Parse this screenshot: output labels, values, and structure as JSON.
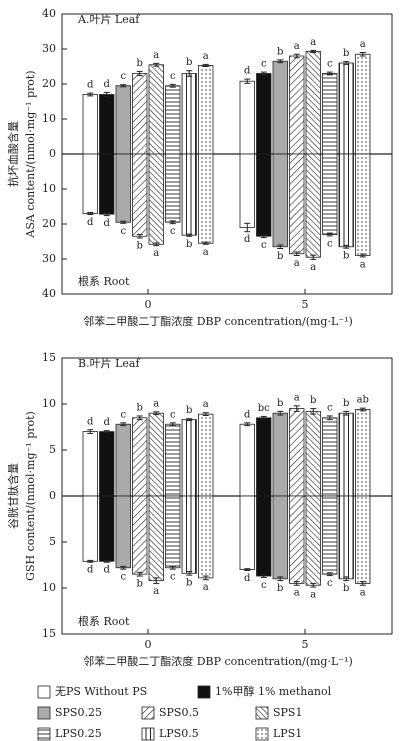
{
  "legend": [
    {
      "name": "无PS Without PS",
      "pattern": "white"
    },
    {
      "name": "1%甲醇 1% methanol",
      "pattern": "black"
    },
    {
      "name": "SPS0.25",
      "pattern": "gray"
    },
    {
      "name": "SPS0.5",
      "pattern": "slash"
    },
    {
      "name": "SPS1",
      "pattern": "backslash"
    },
    {
      "name": "LPS0.25",
      "pattern": "horizontal"
    },
    {
      "name": "LPS0.5",
      "pattern": "vertical"
    },
    {
      "name": "LPS1",
      "pattern": "dots"
    }
  ],
  "chart_data": [
    {
      "type": "bar",
      "title": "A.叶片 Leaf",
      "lower_label": "根系 Root",
      "y_label": [
        "抗坏血酸含量",
        "ASA content/(nmol·mg⁻¹ prot)"
      ],
      "x_label": "邻苯二甲酸二丁酯浓度 DBP concentration/(mg·L⁻¹)",
      "categories": [
        "0",
        "5"
      ],
      "ylim": [
        -40,
        40
      ],
      "yticks": [
        {
          "value": -40,
          "label": "40"
        },
        {
          "value": -30,
          "label": "30"
        },
        {
          "value": -20,
          "label": "20"
        },
        {
          "value": -10,
          "label": "10"
        },
        0,
        10,
        20,
        30,
        40
      ],
      "series": [
        {
          "values": [
            17,
            20.8
          ],
          "errors": [
            0.4,
            0.6
          ],
          "letters": [
            "d",
            "d"
          ],
          "root_values": [
            -17,
            -21
          ],
          "root_errors": [
            0.3,
            1.2
          ],
          "root_letters": [
            "d",
            "d"
          ]
        },
        {
          "values": [
            17,
            23
          ],
          "errors": [
            0.6,
            0.4
          ],
          "letters": [
            "d",
            "c"
          ],
          "root_values": [
            -17.2,
            -23.5
          ],
          "root_errors": [
            0.4,
            0.4
          ],
          "root_letters": [
            "d",
            "c"
          ]
        },
        {
          "values": [
            19.5,
            26.5
          ],
          "errors": [
            0.3,
            0.4
          ],
          "letters": [
            "c",
            "b"
          ],
          "root_values": [
            -19.5,
            -26.5
          ],
          "root_errors": [
            0.3,
            0.5
          ],
          "root_letters": [
            "c",
            "b"
          ]
        },
        {
          "values": [
            23,
            28
          ],
          "errors": [
            0.6,
            0.5
          ],
          "letters": [
            "b",
            "a"
          ],
          "root_values": [
            -23.5,
            -28.5
          ],
          "root_errors": [
            0.5,
            0.5
          ],
          "root_letters": [
            "b",
            "a"
          ]
        },
        {
          "values": [
            25.5,
            29.3
          ],
          "errors": [
            0.4,
            0.3
          ],
          "letters": [
            "a",
            "a"
          ],
          "root_values": [
            -25.8,
            -29.5
          ],
          "root_errors": [
            0.4,
            0.6
          ],
          "root_letters": [
            "a",
            "a"
          ]
        },
        {
          "values": [
            19.5,
            23
          ],
          "errors": [
            0.4,
            0.4
          ],
          "letters": [
            "c",
            "c"
          ],
          "root_values": [
            -19.5,
            -23
          ],
          "root_errors": [
            0.4,
            0.4
          ],
          "root_letters": [
            "c",
            "c"
          ]
        },
        {
          "values": [
            23,
            26
          ],
          "errors": [
            0.8,
            0.4
          ],
          "letters": [
            "b",
            "b"
          ],
          "root_values": [
            -23.2,
            -26.5
          ],
          "root_errors": [
            0.3,
            0.4
          ],
          "root_letters": [
            "b",
            "b"
          ]
        },
        {
          "values": [
            25.3,
            28.5
          ],
          "errors": [
            0.3,
            0.5
          ],
          "letters": [
            "a",
            "a"
          ],
          "root_values": [
            -25.5,
            -29
          ],
          "root_errors": [
            0.3,
            0.4
          ],
          "root_letters": [
            "a",
            "a"
          ]
        }
      ]
    },
    {
      "type": "bar",
      "title": "B.叶片 Leaf",
      "lower_label": "根系 Root",
      "y_label": [
        "谷胱甘肽含量",
        "GSH content/(nmol·mg⁻¹ prot)"
      ],
      "x_label": "邻苯二甲酸二丁酯浓度 DBP concentration/(mg·L⁻¹)",
      "categories": [
        "0",
        "5"
      ],
      "ylim": [
        -15,
        15
      ],
      "yticks": [
        {
          "value": -15,
          "label": "15"
        },
        {
          "value": -10,
          "label": "10"
        },
        {
          "value": -5,
          "label": "5"
        },
        0,
        5,
        10,
        15
      ],
      "series": [
        {
          "values": [
            7,
            7.8
          ],
          "errors": [
            0.2,
            0.15
          ],
          "letters": [
            "d",
            "d"
          ],
          "root_values": [
            -7.1,
            -8
          ],
          "root_errors": [
            0.1,
            0.1
          ],
          "root_letters": [
            "d",
            "d"
          ]
        },
        {
          "values": [
            7,
            8.5
          ],
          "errors": [
            0.1,
            0.15
          ],
          "letters": [
            "d",
            "bc"
          ],
          "root_values": [
            -7.1,
            -8.7
          ],
          "root_errors": [
            0.1,
            0.15
          ],
          "root_letters": [
            "d",
            "c"
          ]
        },
        {
          "values": [
            7.8,
            9
          ],
          "errors": [
            0.15,
            0.2
          ],
          "letters": [
            "c",
            "b"
          ],
          "root_values": [
            -7.8,
            -9
          ],
          "root_errors": [
            0.15,
            0.2
          ],
          "root_letters": [
            "c",
            "b"
          ]
        },
        {
          "values": [
            8.5,
            9.5
          ],
          "errors": [
            0.2,
            0.3
          ],
          "letters": [
            "b",
            "a"
          ],
          "root_values": [
            -8.5,
            -9.5
          ],
          "root_errors": [
            0.2,
            0.2
          ],
          "root_letters": [
            "b",
            "a"
          ]
        },
        {
          "values": [
            9,
            9.2
          ],
          "errors": [
            0.15,
            0.3
          ],
          "letters": [
            "a",
            "b"
          ],
          "root_values": [
            -9.2,
            -9.7
          ],
          "root_errors": [
            0.3,
            0.2
          ],
          "root_letters": [
            "a",
            "a"
          ]
        },
        {
          "values": [
            7.8,
            8.5
          ],
          "errors": [
            0.15,
            0.2
          ],
          "letters": [
            "c",
            "c"
          ],
          "root_values": [
            -7.8,
            -8.5
          ],
          "root_errors": [
            0.15,
            0.15
          ],
          "root_letters": [
            "c",
            "c"
          ]
        },
        {
          "values": [
            8.3,
            9
          ],
          "errors": [
            0.1,
            0.2
          ],
          "letters": [
            "b",
            "b"
          ],
          "root_values": [
            -8.4,
            -9
          ],
          "root_errors": [
            0.2,
            0.2
          ],
          "root_letters": [
            "b",
            "b"
          ]
        },
        {
          "values": [
            8.9,
            9.4
          ],
          "errors": [
            0.15,
            0.15
          ],
          "letters": [
            "a",
            "ab"
          ],
          "root_values": [
            -8.9,
            -9.5
          ],
          "root_errors": [
            0.2,
            0.2
          ],
          "root_letters": [
            "a",
            "a"
          ]
        }
      ]
    }
  ]
}
